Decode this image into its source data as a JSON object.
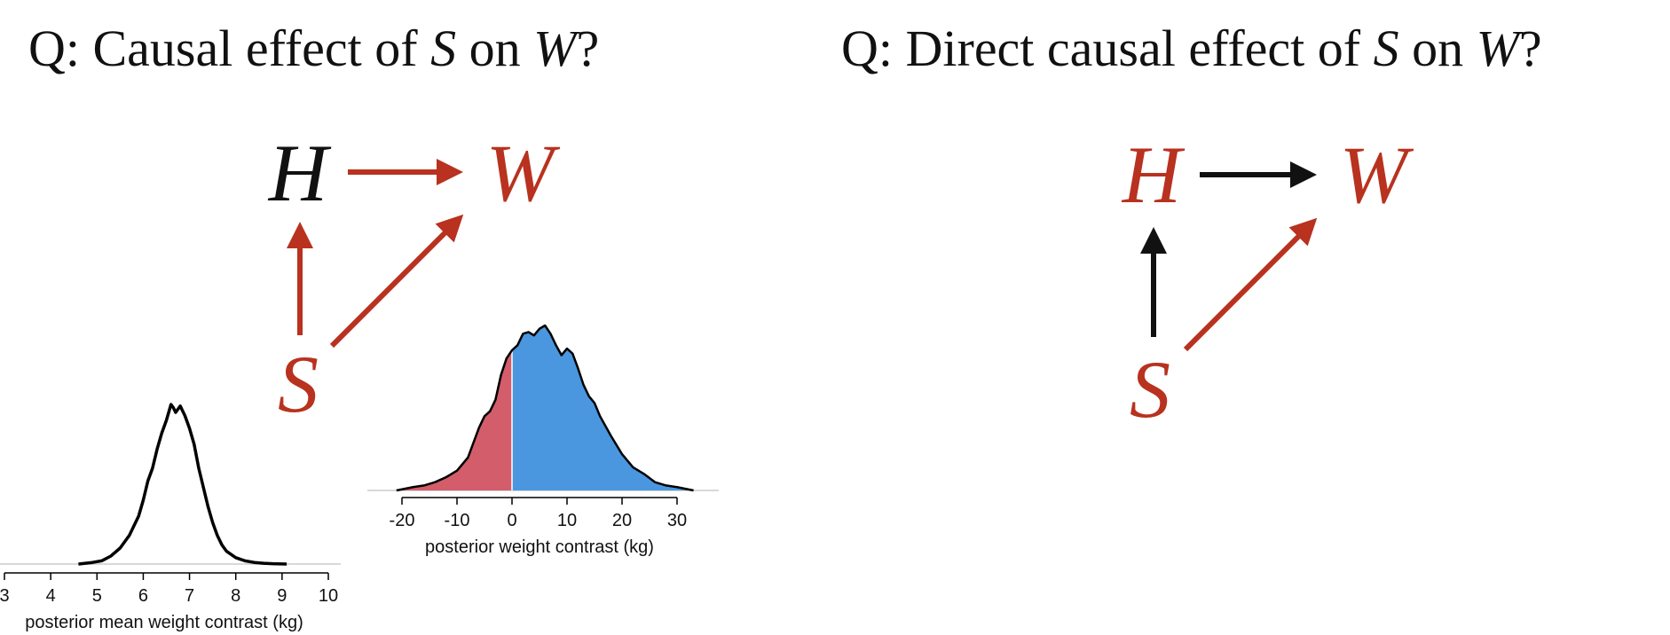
{
  "titles": {
    "left": {
      "prefix": "Q: Causal effect of ",
      "var1": "S",
      "middle": " on ",
      "var2": "W",
      "suffix": "?"
    },
    "right": {
      "prefix": "Q: Direct causal effect of ",
      "var1": "S",
      "middle": " on ",
      "var2": "W",
      "suffix": "?"
    }
  },
  "colors": {
    "red": "#b8321f",
    "black": "#111111",
    "blue_fill": "#4a97e0",
    "red_fill": "#d35d6a",
    "axis": "#cccccc"
  },
  "dags": {
    "left": {
      "nodes": {
        "H": {
          "label": "H",
          "color": "black"
        },
        "W": {
          "label": "W",
          "color": "red"
        },
        "S": {
          "label": "S",
          "color": "red"
        }
      },
      "edges": [
        {
          "from": "H",
          "to": "W",
          "color": "red"
        },
        {
          "from": "S",
          "to": "H",
          "color": "red"
        },
        {
          "from": "S",
          "to": "W",
          "color": "red"
        }
      ]
    },
    "right": {
      "nodes": {
        "H": {
          "label": "H",
          "color": "red"
        },
        "W": {
          "label": "W",
          "color": "red"
        },
        "S": {
          "label": "S",
          "color": "red"
        }
      },
      "edges": [
        {
          "from": "H",
          "to": "W",
          "color": "black"
        },
        {
          "from": "S",
          "to": "H",
          "color": "black"
        },
        {
          "from": "S",
          "to": "W",
          "color": "red"
        }
      ]
    }
  },
  "chart_data": [
    {
      "type": "area",
      "xlabel": "posterior mean weight contrast (kg)",
      "xlim": [
        3,
        10
      ],
      "ticks": [
        3,
        4,
        5,
        6,
        7,
        8,
        9,
        10
      ],
      "tick_labels": [
        "3",
        "4",
        "5",
        "6",
        "7",
        "8",
        "9",
        "10"
      ],
      "density": {
        "x": [
          4.6,
          4.9,
          5.1,
          5.3,
          5.5,
          5.7,
          5.9,
          6.0,
          6.1,
          6.2,
          6.3,
          6.4,
          6.5,
          6.6,
          6.65,
          6.7,
          6.8,
          6.85,
          6.9,
          7.0,
          7.1,
          7.2,
          7.3,
          7.4,
          7.5,
          7.6,
          7.7,
          7.8,
          8.0,
          8.2,
          8.4,
          8.6,
          8.8,
          9.1
        ],
        "y": [
          0.0,
          0.01,
          0.02,
          0.05,
          0.1,
          0.18,
          0.3,
          0.4,
          0.52,
          0.6,
          0.72,
          0.82,
          0.9,
          1.0,
          0.98,
          0.95,
          0.99,
          0.96,
          0.93,
          0.85,
          0.75,
          0.6,
          0.48,
          0.36,
          0.26,
          0.18,
          0.12,
          0.08,
          0.04,
          0.02,
          0.01,
          0.005,
          0.002,
          0.0
        ]
      }
    },
    {
      "type": "area",
      "xlabel": "posterior weight contrast (kg)",
      "xlim": [
        -20,
        30
      ],
      "ticks": [
        -20,
        -10,
        0,
        10,
        20,
        30
      ],
      "tick_labels": [
        "-20",
        "-10",
        "0",
        "10",
        "20",
        "30"
      ],
      "split_at": 0,
      "density": {
        "x": [
          -21,
          -18,
          -16,
          -14,
          -12,
          -10,
          -8,
          -6,
          -5,
          -4,
          -3,
          -2,
          -1,
          0,
          1,
          2,
          3,
          4,
          5,
          6,
          7,
          8,
          9,
          10,
          11,
          12,
          13,
          14,
          15,
          16,
          18,
          20,
          22,
          24,
          26,
          28,
          30,
          33
        ],
        "y": [
          0.0,
          0.02,
          0.03,
          0.05,
          0.08,
          0.12,
          0.2,
          0.38,
          0.45,
          0.48,
          0.55,
          0.7,
          0.8,
          0.85,
          0.88,
          0.95,
          0.96,
          0.94,
          0.98,
          1.0,
          0.95,
          0.88,
          0.82,
          0.86,
          0.83,
          0.74,
          0.64,
          0.57,
          0.53,
          0.45,
          0.33,
          0.22,
          0.14,
          0.1,
          0.05,
          0.03,
          0.02,
          0.0
        ]
      }
    }
  ]
}
